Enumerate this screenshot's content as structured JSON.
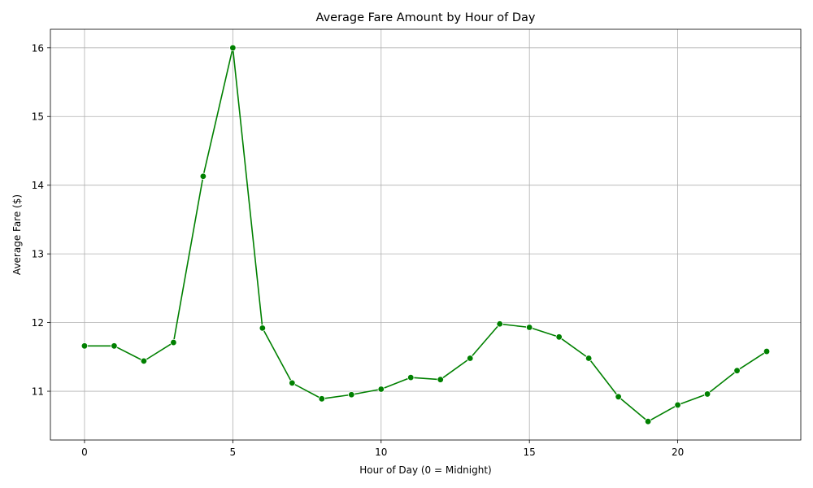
{
  "chart_data": {
    "type": "line",
    "title": "Average Fare Amount by Hour of Day",
    "xlabel": "Hour of Day (0 = Midnight)",
    "ylabel": "Average Fare ($)",
    "xlim": [
      -1.15,
      24.15
    ],
    "ylim": [
      10.29,
      16.27
    ],
    "xticks": [
      0,
      5,
      10,
      15,
      20
    ],
    "yticks": [
      11,
      12,
      13,
      14,
      15,
      16
    ],
    "grid": true,
    "series": [
      {
        "color": "#008000",
        "marker": "circle",
        "x": [
          0,
          1,
          2,
          3,
          4,
          5,
          6,
          7,
          8,
          9,
          10,
          11,
          12,
          13,
          14,
          15,
          16,
          17,
          18,
          19,
          20,
          21,
          22,
          23
        ],
        "values": [
          11.66,
          11.66,
          11.44,
          11.71,
          14.13,
          16.0,
          11.92,
          11.12,
          10.89,
          10.95,
          11.03,
          11.2,
          11.17,
          11.48,
          11.98,
          11.93,
          11.79,
          11.48,
          10.92,
          10.56,
          10.8,
          10.96,
          11.3,
          11.58
        ]
      }
    ]
  }
}
